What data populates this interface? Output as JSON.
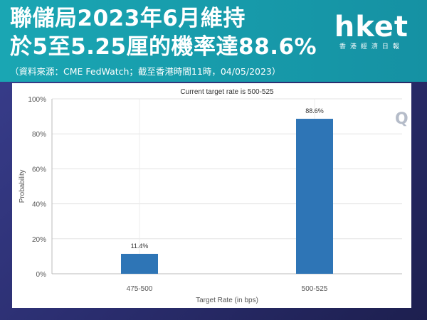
{
  "header": {
    "headline_line1": "聯儲局2023年6月維持",
    "headline_line2": "於5至5.25厘的機率達88.6%",
    "source_note": "（資料來源：CME FedWatch；截至香港時間11時，04/05/2023）"
  },
  "logo": {
    "word": "hket",
    "subtitle": "香港經濟日報"
  },
  "chart_watermark": "Q",
  "colors": {
    "banner": "#1aa6b3",
    "background": "#2a2d6e",
    "bar": "#2e75b6"
  },
  "chart_data": {
    "type": "bar",
    "title": "Current target rate is 500-525",
    "xlabel": "Target Rate (in bps)",
    "ylabel": "Probability",
    "categories": [
      "475-500",
      "500-525"
    ],
    "values": [
      11.4,
      88.6
    ],
    "value_labels": [
      "11.4%",
      "88.6%"
    ],
    "ylim": [
      0,
      100
    ],
    "yticks": [
      "0%",
      "20%",
      "40%",
      "60%",
      "80%",
      "100%"
    ],
    "ytick_values": [
      0,
      20,
      40,
      60,
      80,
      100
    ],
    "grid": true,
    "legend": "none"
  }
}
